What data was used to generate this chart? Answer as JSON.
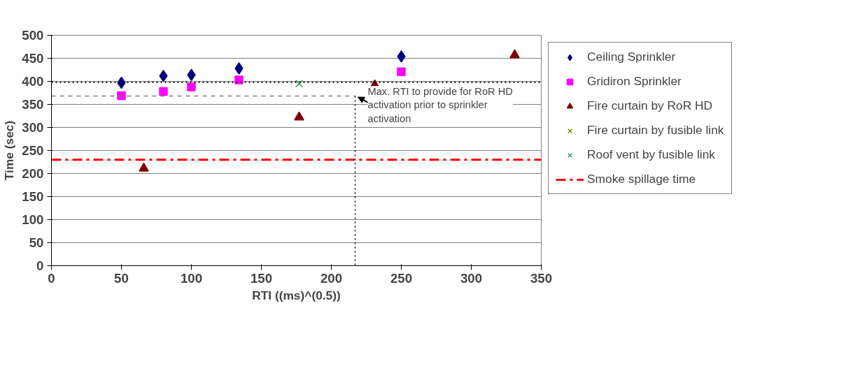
{
  "chart_data": {
    "type": "scatter",
    "xlabel": "RTI ((ms)^(0.5))",
    "ylabel": "Time (sec)",
    "xlim": [
      0,
      350
    ],
    "xticks": [
      0,
      50,
      100,
      150,
      200,
      250,
      300,
      350
    ],
    "ylim": [
      0,
      500
    ],
    "yticks": [
      0,
      50,
      100,
      150,
      200,
      250,
      300,
      350,
      400,
      450,
      500
    ],
    "grid": "y",
    "legend": "right",
    "series": [
      {
        "name": "Ceiling Sprinkler",
        "marker": "diamond",
        "color": "#000080",
        "x": [
          50,
          80,
          100,
          134,
          250
        ],
        "values": [
          397,
          412,
          414,
          428,
          454
        ]
      },
      {
        "name": "Gridiron Sprinkler",
        "marker": "square",
        "color": "#ff00ff",
        "x": [
          50,
          80,
          100,
          134,
          250
        ],
        "values": [
          369,
          378,
          388,
          403,
          421
        ]
      },
      {
        "name": "Fire curtain by RoR HD",
        "marker": "triangle",
        "color": "#800000",
        "x": [
          66,
          177,
          231,
          331
        ],
        "values": [
          211,
          322,
          392,
          457
        ]
      },
      {
        "name": "Fire curtain by fusible link",
        "marker": "cross",
        "color": "#808000"
      },
      {
        "name": "Roof vent by fusible link",
        "marker": "cross",
        "color": "#339966",
        "x": [
          177
        ],
        "values": [
          395
        ]
      },
      {
        "name": "Smoke spillage time",
        "type": "line",
        "line_style": "dashdot",
        "color": "#ff0000",
        "x": [
          0,
          350
        ],
        "values": [
          230,
          230
        ]
      },
      {
        "type": "line",
        "line_style": "dashed",
        "color": "#808080",
        "x": [
          0,
          217
        ],
        "values": [
          368,
          368
        ]
      },
      {
        "type": "line",
        "line_style": "dotted",
        "color": "#000000",
        "x": [
          217,
          217
        ],
        "values": [
          368,
          0
        ]
      }
    ],
    "ref_lines": [
      {
        "axis": "y",
        "value": 398,
        "color": "#000000",
        "line_style": "dotted"
      }
    ],
    "annotations": [
      {
        "text": "Max. RTI to provide for RoR HD activation prior to sprinkler activation",
        "x": 217,
        "y": 368
      }
    ]
  }
}
